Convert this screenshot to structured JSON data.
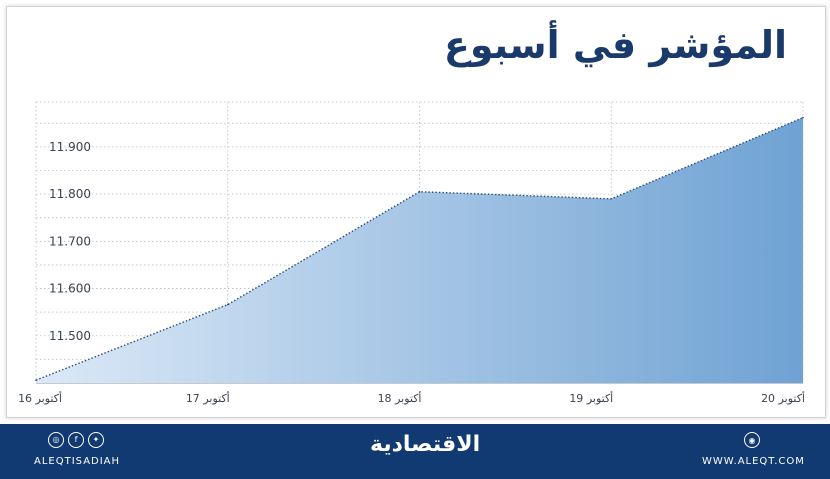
{
  "chart_data": {
    "type": "area",
    "title": "المؤشر في أسبوع",
    "categories": [
      "16 أكتوبر",
      "17 أكتوبر",
      "18 أكتوبر",
      "19 أكتوبر",
      "20 أكتوبر"
    ],
    "values": [
      11406,
      11566,
      11805,
      11790,
      11962
    ],
    "yticks": [
      "11.500",
      "11.600",
      "11.700",
      "11.800",
      "11.900"
    ],
    "ylim": [
      11400,
      11995
    ],
    "grid": true,
    "colors": {
      "fill_start": "#dce9f7",
      "fill_end": "#6fa2d3",
      "line": "#2c4f7c"
    }
  },
  "footer": {
    "handle": "ALEQTISADIAH",
    "brand": "الاقتصادية",
    "site": "WWW.ALEQT.COM",
    "social_icons": [
      "instagram-icon",
      "facebook-icon",
      "twitter-icon"
    ],
    "site_icon": "globe-icon"
  }
}
